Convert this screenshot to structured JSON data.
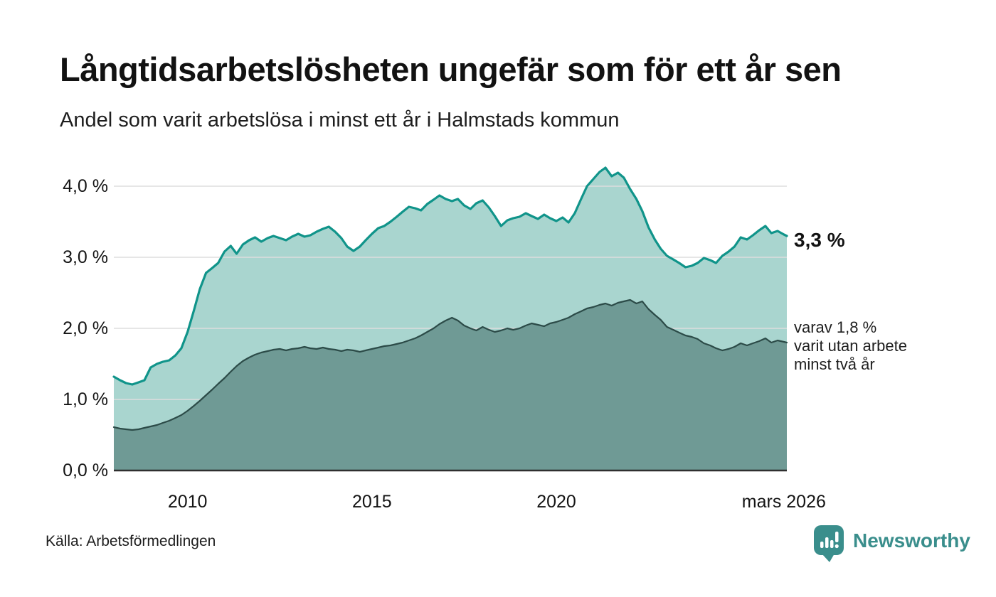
{
  "header": {
    "title": "Långtidsarbetslösheten ungefär som för ett år sen",
    "subtitle": "Andel som varit arbetslösa i minst ett år i Halmstads kommun"
  },
  "annotations": {
    "latest_value": "3,3 %",
    "secondary": [
      "varav 1,8 %",
      "varit utan arbete",
      "minst två år"
    ]
  },
  "source": {
    "label": "Källa: Arbetsförmedlingen"
  },
  "branding": {
    "name": "Newsworthy",
    "icon": "newsworthy-speech-bubble-bar-chart-icon",
    "color": "#3A8E8C"
  },
  "chart_data": {
    "type": "area",
    "title": "Långtidsarbetslösheten ungefär som för ett år sen",
    "xlabel": "",
    "ylabel": "",
    "grid": true,
    "grid_color": "#DDDDDD",
    "baseline_color": "#2F2F2F",
    "x_axis": {
      "range": [
        2008.0,
        2026.25
      ],
      "ticks": [
        {
          "label": "2010",
          "x": 2010
        },
        {
          "label": "2015",
          "x": 2015
        },
        {
          "label": "2020",
          "x": 2020
        },
        {
          "label": "mars 2026",
          "x": 2026.17
        }
      ]
    },
    "y_axis": {
      "unit": "%",
      "range": [
        0,
        4.3
      ],
      "ticks": [
        {
          "label": "0,0 %",
          "value": 0
        },
        {
          "label": "1,0 %",
          "value": 1
        },
        {
          "label": "2,0 %",
          "value": 2
        },
        {
          "label": "3,0 %",
          "value": 3
        },
        {
          "label": "4,0 %",
          "value": 4
        }
      ]
    },
    "series": [
      {
        "name": "Andel arbetslösa minst ett år",
        "stroke": "#10948A",
        "fill": "#A9D5CF",
        "stroke_width": 3.2,
        "end_value": 3.3,
        "points": [
          [
            2008.0,
            1.32
          ],
          [
            2008.17,
            1.27
          ],
          [
            2008.33,
            1.23
          ],
          [
            2008.5,
            1.21
          ],
          [
            2008.67,
            1.24
          ],
          [
            2008.83,
            1.27
          ],
          [
            2009.0,
            1.45
          ],
          [
            2009.17,
            1.5
          ],
          [
            2009.33,
            1.53
          ],
          [
            2009.5,
            1.55
          ],
          [
            2009.67,
            1.62
          ],
          [
            2009.83,
            1.72
          ],
          [
            2010.0,
            1.95
          ],
          [
            2010.17,
            2.25
          ],
          [
            2010.33,
            2.55
          ],
          [
            2010.5,
            2.78
          ],
          [
            2010.67,
            2.85
          ],
          [
            2010.83,
            2.92
          ],
          [
            2011.0,
            3.08
          ],
          [
            2011.17,
            3.16
          ],
          [
            2011.33,
            3.05
          ],
          [
            2011.5,
            3.18
          ],
          [
            2011.67,
            3.24
          ],
          [
            2011.83,
            3.28
          ],
          [
            2012.0,
            3.22
          ],
          [
            2012.17,
            3.27
          ],
          [
            2012.33,
            3.3
          ],
          [
            2012.5,
            3.27
          ],
          [
            2012.67,
            3.24
          ],
          [
            2012.83,
            3.29
          ],
          [
            2013.0,
            3.33
          ],
          [
            2013.17,
            3.29
          ],
          [
            2013.33,
            3.31
          ],
          [
            2013.5,
            3.36
          ],
          [
            2013.67,
            3.4
          ],
          [
            2013.83,
            3.43
          ],
          [
            2014.0,
            3.36
          ],
          [
            2014.17,
            3.27
          ],
          [
            2014.33,
            3.15
          ],
          [
            2014.5,
            3.09
          ],
          [
            2014.67,
            3.15
          ],
          [
            2014.83,
            3.24
          ],
          [
            2015.0,
            3.33
          ],
          [
            2015.17,
            3.41
          ],
          [
            2015.33,
            3.44
          ],
          [
            2015.5,
            3.5
          ],
          [
            2015.67,
            3.57
          ],
          [
            2015.83,
            3.64
          ],
          [
            2016.0,
            3.71
          ],
          [
            2016.17,
            3.69
          ],
          [
            2016.33,
            3.66
          ],
          [
            2016.5,
            3.75
          ],
          [
            2016.67,
            3.81
          ],
          [
            2016.83,
            3.87
          ],
          [
            2017.0,
            3.82
          ],
          [
            2017.17,
            3.79
          ],
          [
            2017.33,
            3.82
          ],
          [
            2017.5,
            3.73
          ],
          [
            2017.67,
            3.68
          ],
          [
            2017.83,
            3.76
          ],
          [
            2018.0,
            3.8
          ],
          [
            2018.17,
            3.7
          ],
          [
            2018.33,
            3.58
          ],
          [
            2018.5,
            3.44
          ],
          [
            2018.67,
            3.52
          ],
          [
            2018.83,
            3.55
          ],
          [
            2019.0,
            3.57
          ],
          [
            2019.17,
            3.62
          ],
          [
            2019.33,
            3.58
          ],
          [
            2019.5,
            3.54
          ],
          [
            2019.67,
            3.6
          ],
          [
            2019.83,
            3.55
          ],
          [
            2020.0,
            3.51
          ],
          [
            2020.17,
            3.56
          ],
          [
            2020.33,
            3.49
          ],
          [
            2020.5,
            3.62
          ],
          [
            2020.67,
            3.82
          ],
          [
            2020.83,
            4.0
          ],
          [
            2021.0,
            4.1
          ],
          [
            2021.17,
            4.2
          ],
          [
            2021.33,
            4.26
          ],
          [
            2021.5,
            4.14
          ],
          [
            2021.67,
            4.19
          ],
          [
            2021.83,
            4.12
          ],
          [
            2022.0,
            3.96
          ],
          [
            2022.17,
            3.82
          ],
          [
            2022.33,
            3.65
          ],
          [
            2022.5,
            3.42
          ],
          [
            2022.67,
            3.25
          ],
          [
            2022.83,
            3.12
          ],
          [
            2023.0,
            3.02
          ],
          [
            2023.17,
            2.97
          ],
          [
            2023.33,
            2.92
          ],
          [
            2023.5,
            2.86
          ],
          [
            2023.67,
            2.88
          ],
          [
            2023.83,
            2.92
          ],
          [
            2024.0,
            2.99
          ],
          [
            2024.17,
            2.96
          ],
          [
            2024.33,
            2.92
          ],
          [
            2024.5,
            3.02
          ],
          [
            2024.67,
            3.08
          ],
          [
            2024.83,
            3.15
          ],
          [
            2025.0,
            3.28
          ],
          [
            2025.17,
            3.25
          ],
          [
            2025.33,
            3.31
          ],
          [
            2025.5,
            3.38
          ],
          [
            2025.67,
            3.44
          ],
          [
            2025.83,
            3.34
          ],
          [
            2026.0,
            3.37
          ],
          [
            2026.17,
            3.32
          ],
          [
            2026.25,
            3.3
          ]
        ]
      },
      {
        "name": "varav arbetslösa minst två år",
        "stroke": "#2C4B48",
        "fill": "#6F9A95",
        "stroke_width": 2.2,
        "end_value": 1.8,
        "points": [
          [
            2008.0,
            0.61
          ],
          [
            2008.17,
            0.59
          ],
          [
            2008.33,
            0.58
          ],
          [
            2008.5,
            0.57
          ],
          [
            2008.67,
            0.58
          ],
          [
            2008.83,
            0.6
          ],
          [
            2009.0,
            0.62
          ],
          [
            2009.17,
            0.64
          ],
          [
            2009.33,
            0.67
          ],
          [
            2009.5,
            0.7
          ],
          [
            2009.67,
            0.74
          ],
          [
            2009.83,
            0.78
          ],
          [
            2010.0,
            0.84
          ],
          [
            2010.17,
            0.91
          ],
          [
            2010.33,
            0.98
          ],
          [
            2010.5,
            1.06
          ],
          [
            2010.67,
            1.14
          ],
          [
            2010.83,
            1.22
          ],
          [
            2011.0,
            1.3
          ],
          [
            2011.17,
            1.39
          ],
          [
            2011.33,
            1.47
          ],
          [
            2011.5,
            1.54
          ],
          [
            2011.67,
            1.59
          ],
          [
            2011.83,
            1.63
          ],
          [
            2012.0,
            1.66
          ],
          [
            2012.17,
            1.68
          ],
          [
            2012.33,
            1.7
          ],
          [
            2012.5,
            1.71
          ],
          [
            2012.67,
            1.69
          ],
          [
            2012.83,
            1.71
          ],
          [
            2013.0,
            1.72
          ],
          [
            2013.17,
            1.74
          ],
          [
            2013.33,
            1.72
          ],
          [
            2013.5,
            1.71
          ],
          [
            2013.67,
            1.73
          ],
          [
            2013.83,
            1.71
          ],
          [
            2014.0,
            1.7
          ],
          [
            2014.17,
            1.68
          ],
          [
            2014.33,
            1.7
          ],
          [
            2014.5,
            1.69
          ],
          [
            2014.67,
            1.67
          ],
          [
            2014.83,
            1.69
          ],
          [
            2015.0,
            1.71
          ],
          [
            2015.17,
            1.73
          ],
          [
            2015.33,
            1.75
          ],
          [
            2015.5,
            1.76
          ],
          [
            2015.67,
            1.78
          ],
          [
            2015.83,
            1.8
          ],
          [
            2016.0,
            1.83
          ],
          [
            2016.17,
            1.86
          ],
          [
            2016.33,
            1.9
          ],
          [
            2016.5,
            1.95
          ],
          [
            2016.67,
            2.0
          ],
          [
            2016.83,
            2.06
          ],
          [
            2017.0,
            2.11
          ],
          [
            2017.17,
            2.15
          ],
          [
            2017.33,
            2.11
          ],
          [
            2017.5,
            2.04
          ],
          [
            2017.67,
            2.0
          ],
          [
            2017.83,
            1.97
          ],
          [
            2018.0,
            2.02
          ],
          [
            2018.17,
            1.98
          ],
          [
            2018.33,
            1.95
          ],
          [
            2018.5,
            1.97
          ],
          [
            2018.67,
            2.0
          ],
          [
            2018.83,
            1.98
          ],
          [
            2019.0,
            2.0
          ],
          [
            2019.17,
            2.04
          ],
          [
            2019.33,
            2.07
          ],
          [
            2019.5,
            2.05
          ],
          [
            2019.67,
            2.03
          ],
          [
            2019.83,
            2.07
          ],
          [
            2020.0,
            2.09
          ],
          [
            2020.17,
            2.12
          ],
          [
            2020.33,
            2.15
          ],
          [
            2020.5,
            2.2
          ],
          [
            2020.67,
            2.24
          ],
          [
            2020.83,
            2.28
          ],
          [
            2021.0,
            2.3
          ],
          [
            2021.17,
            2.33
          ],
          [
            2021.33,
            2.35
          ],
          [
            2021.5,
            2.32
          ],
          [
            2021.67,
            2.36
          ],
          [
            2021.83,
            2.38
          ],
          [
            2022.0,
            2.4
          ],
          [
            2022.17,
            2.35
          ],
          [
            2022.33,
            2.38
          ],
          [
            2022.5,
            2.27
          ],
          [
            2022.67,
            2.19
          ],
          [
            2022.83,
            2.12
          ],
          [
            2023.0,
            2.02
          ],
          [
            2023.17,
            1.98
          ],
          [
            2023.33,
            1.94
          ],
          [
            2023.5,
            1.9
          ],
          [
            2023.67,
            1.88
          ],
          [
            2023.83,
            1.85
          ],
          [
            2024.0,
            1.79
          ],
          [
            2024.17,
            1.76
          ],
          [
            2024.33,
            1.72
          ],
          [
            2024.5,
            1.69
          ],
          [
            2024.67,
            1.71
          ],
          [
            2024.83,
            1.74
          ],
          [
            2025.0,
            1.79
          ],
          [
            2025.17,
            1.76
          ],
          [
            2025.33,
            1.79
          ],
          [
            2025.5,
            1.82
          ],
          [
            2025.67,
            1.86
          ],
          [
            2025.83,
            1.8
          ],
          [
            2026.0,
            1.83
          ],
          [
            2026.17,
            1.81
          ],
          [
            2026.25,
            1.8
          ]
        ]
      }
    ]
  }
}
